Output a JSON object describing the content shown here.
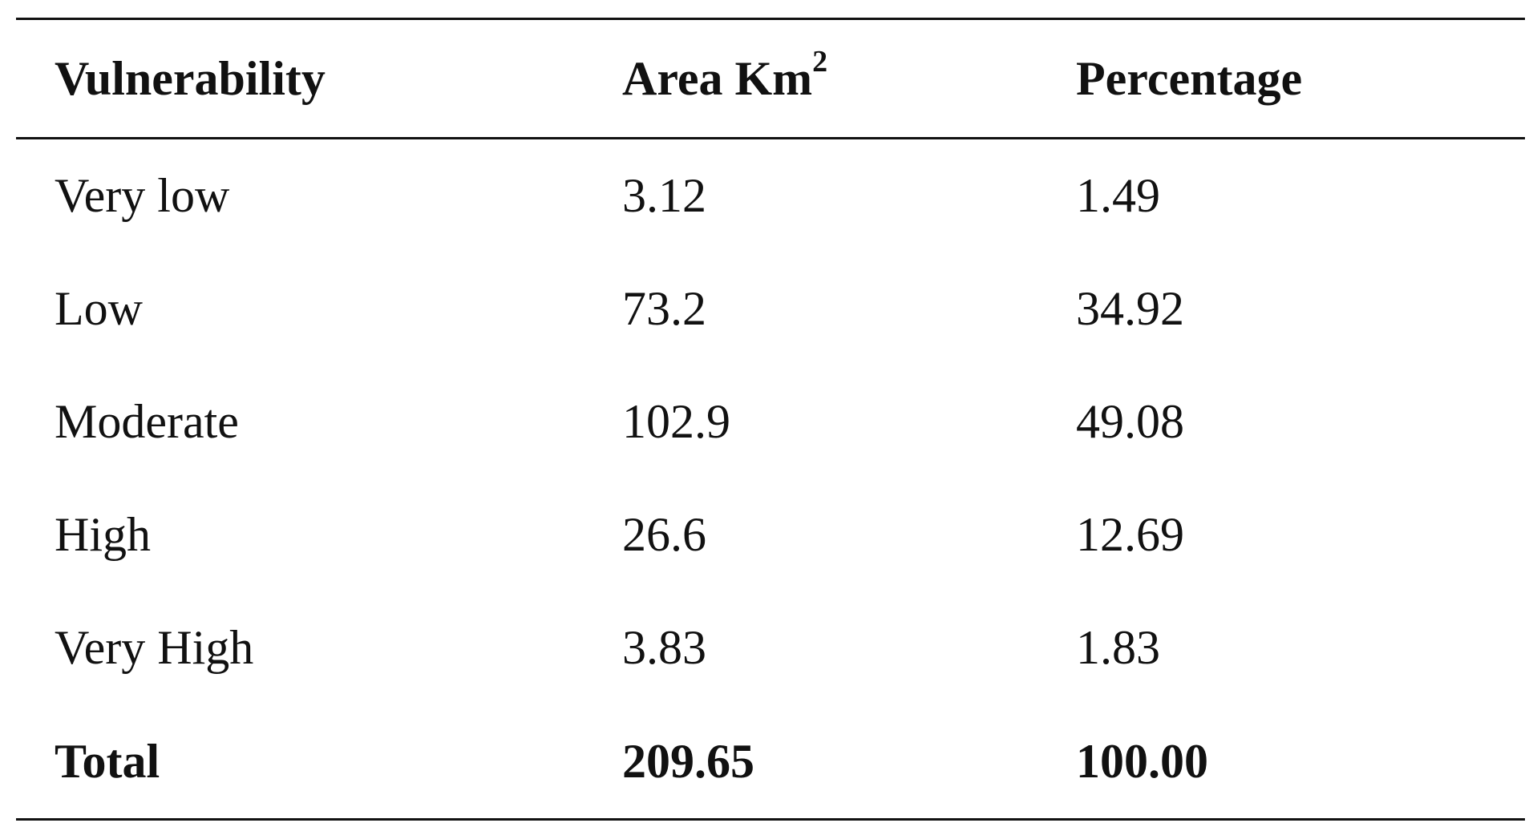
{
  "table": {
    "headers": {
      "vulnerability": "Vulnerability",
      "area_base": "Area Km",
      "area_sup": "2",
      "percentage": "Percentage"
    },
    "rows": [
      {
        "vulnerability": "Very low",
        "area": "3.12",
        "percentage": "1.49"
      },
      {
        "vulnerability": "Low",
        "area": "73.2",
        "percentage": "34.92"
      },
      {
        "vulnerability": "Moderate",
        "area": "102.9",
        "percentage": "49.08"
      },
      {
        "vulnerability": "High",
        "area": "26.6",
        "percentage": "12.69"
      },
      {
        "vulnerability": "Very High",
        "area": "3.83",
        "percentage": "1.83"
      }
    ],
    "total": {
      "vulnerability": "Total",
      "area": "209.65",
      "percentage": "100.00"
    }
  }
}
